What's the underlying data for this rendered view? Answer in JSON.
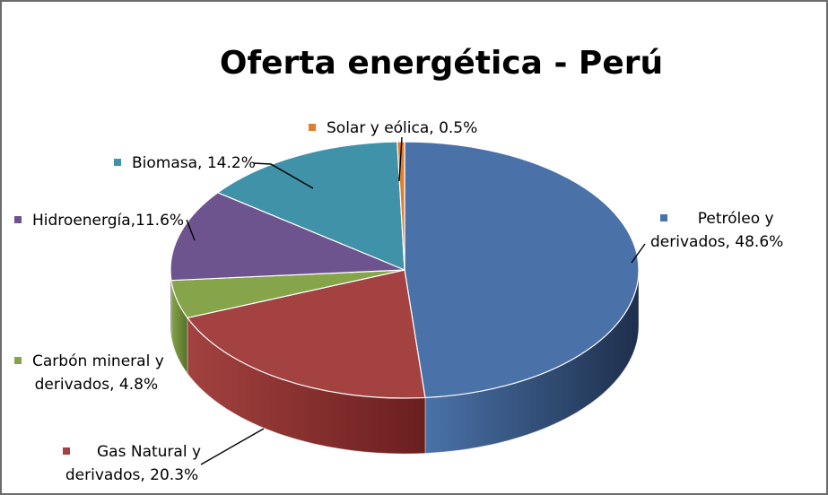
{
  "chart_data": {
    "type": "pie",
    "title": "Oferta energética - Perú",
    "slices": [
      {
        "name": "Petróleo y derivados",
        "value": 48.6,
        "color": "#4a72a8",
        "side": "#1e2f4c",
        "label_lines": [
          "Petróleo y",
          "derivados, 48.6%"
        ]
      },
      {
        "name": "Gas Natural y derivados",
        "value": 20.3,
        "color": "#a34240",
        "side": "#6a1f1e",
        "label_lines": [
          "Gas Natural y",
          "derivados, 20.3%"
        ]
      },
      {
        "name": "Carbón mineral y derivados",
        "value": 4.8,
        "color": "#86a44a",
        "side": "#56702a",
        "label_lines": [
          "Carbón mineral y",
          "derivados, 4.8%"
        ]
      },
      {
        "name": "Hidroenergía",
        "value": 11.6,
        "color": "#6d548f",
        "side": "#463460",
        "label_lines": [
          "Hidroenergía,11.6%"
        ]
      },
      {
        "name": "Biomasa",
        "value": 14.2,
        "color": "#3f92a8",
        "side": "#226070",
        "label_lines": [
          "Biomasa, 14.2%"
        ]
      },
      {
        "name": "Solar y eólica",
        "value": 0.5,
        "color": "#e07d2e",
        "side": "#8f4a15",
        "label_lines": [
          "Solar y eólica, 0.5%"
        ]
      }
    ],
    "legend": "data-labels"
  }
}
